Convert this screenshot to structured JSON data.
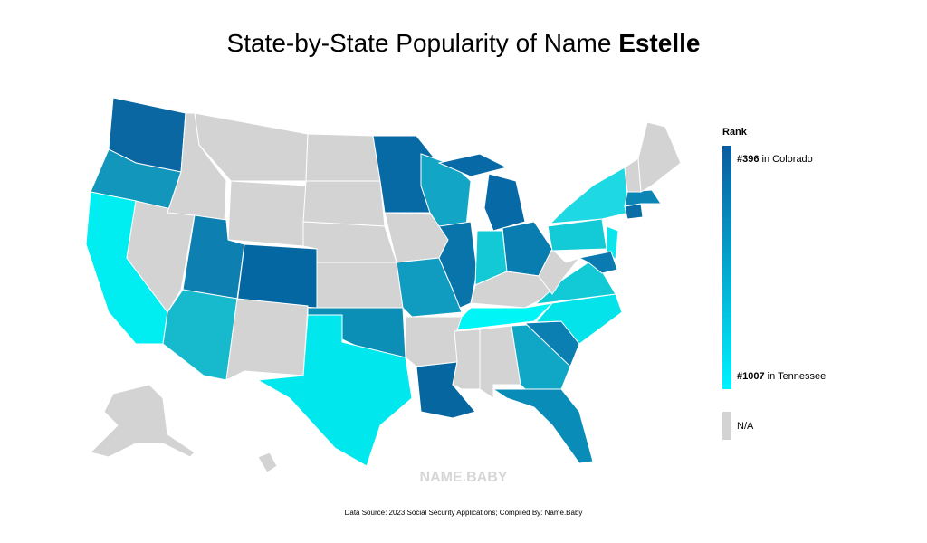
{
  "title": {
    "prefix": "State-by-State Popularity of Name ",
    "name": "Estelle"
  },
  "legend": {
    "title": "Rank",
    "top": {
      "rank": "#396",
      "state": " in Colorado"
    },
    "bottom": {
      "rank": "#1007",
      "state": " in Tennessee"
    },
    "na": "N/A"
  },
  "watermark": "NAME.BABY",
  "source": "Data Source: 2023 Social Security Applications; Compiled By: Name.Baby"
}
